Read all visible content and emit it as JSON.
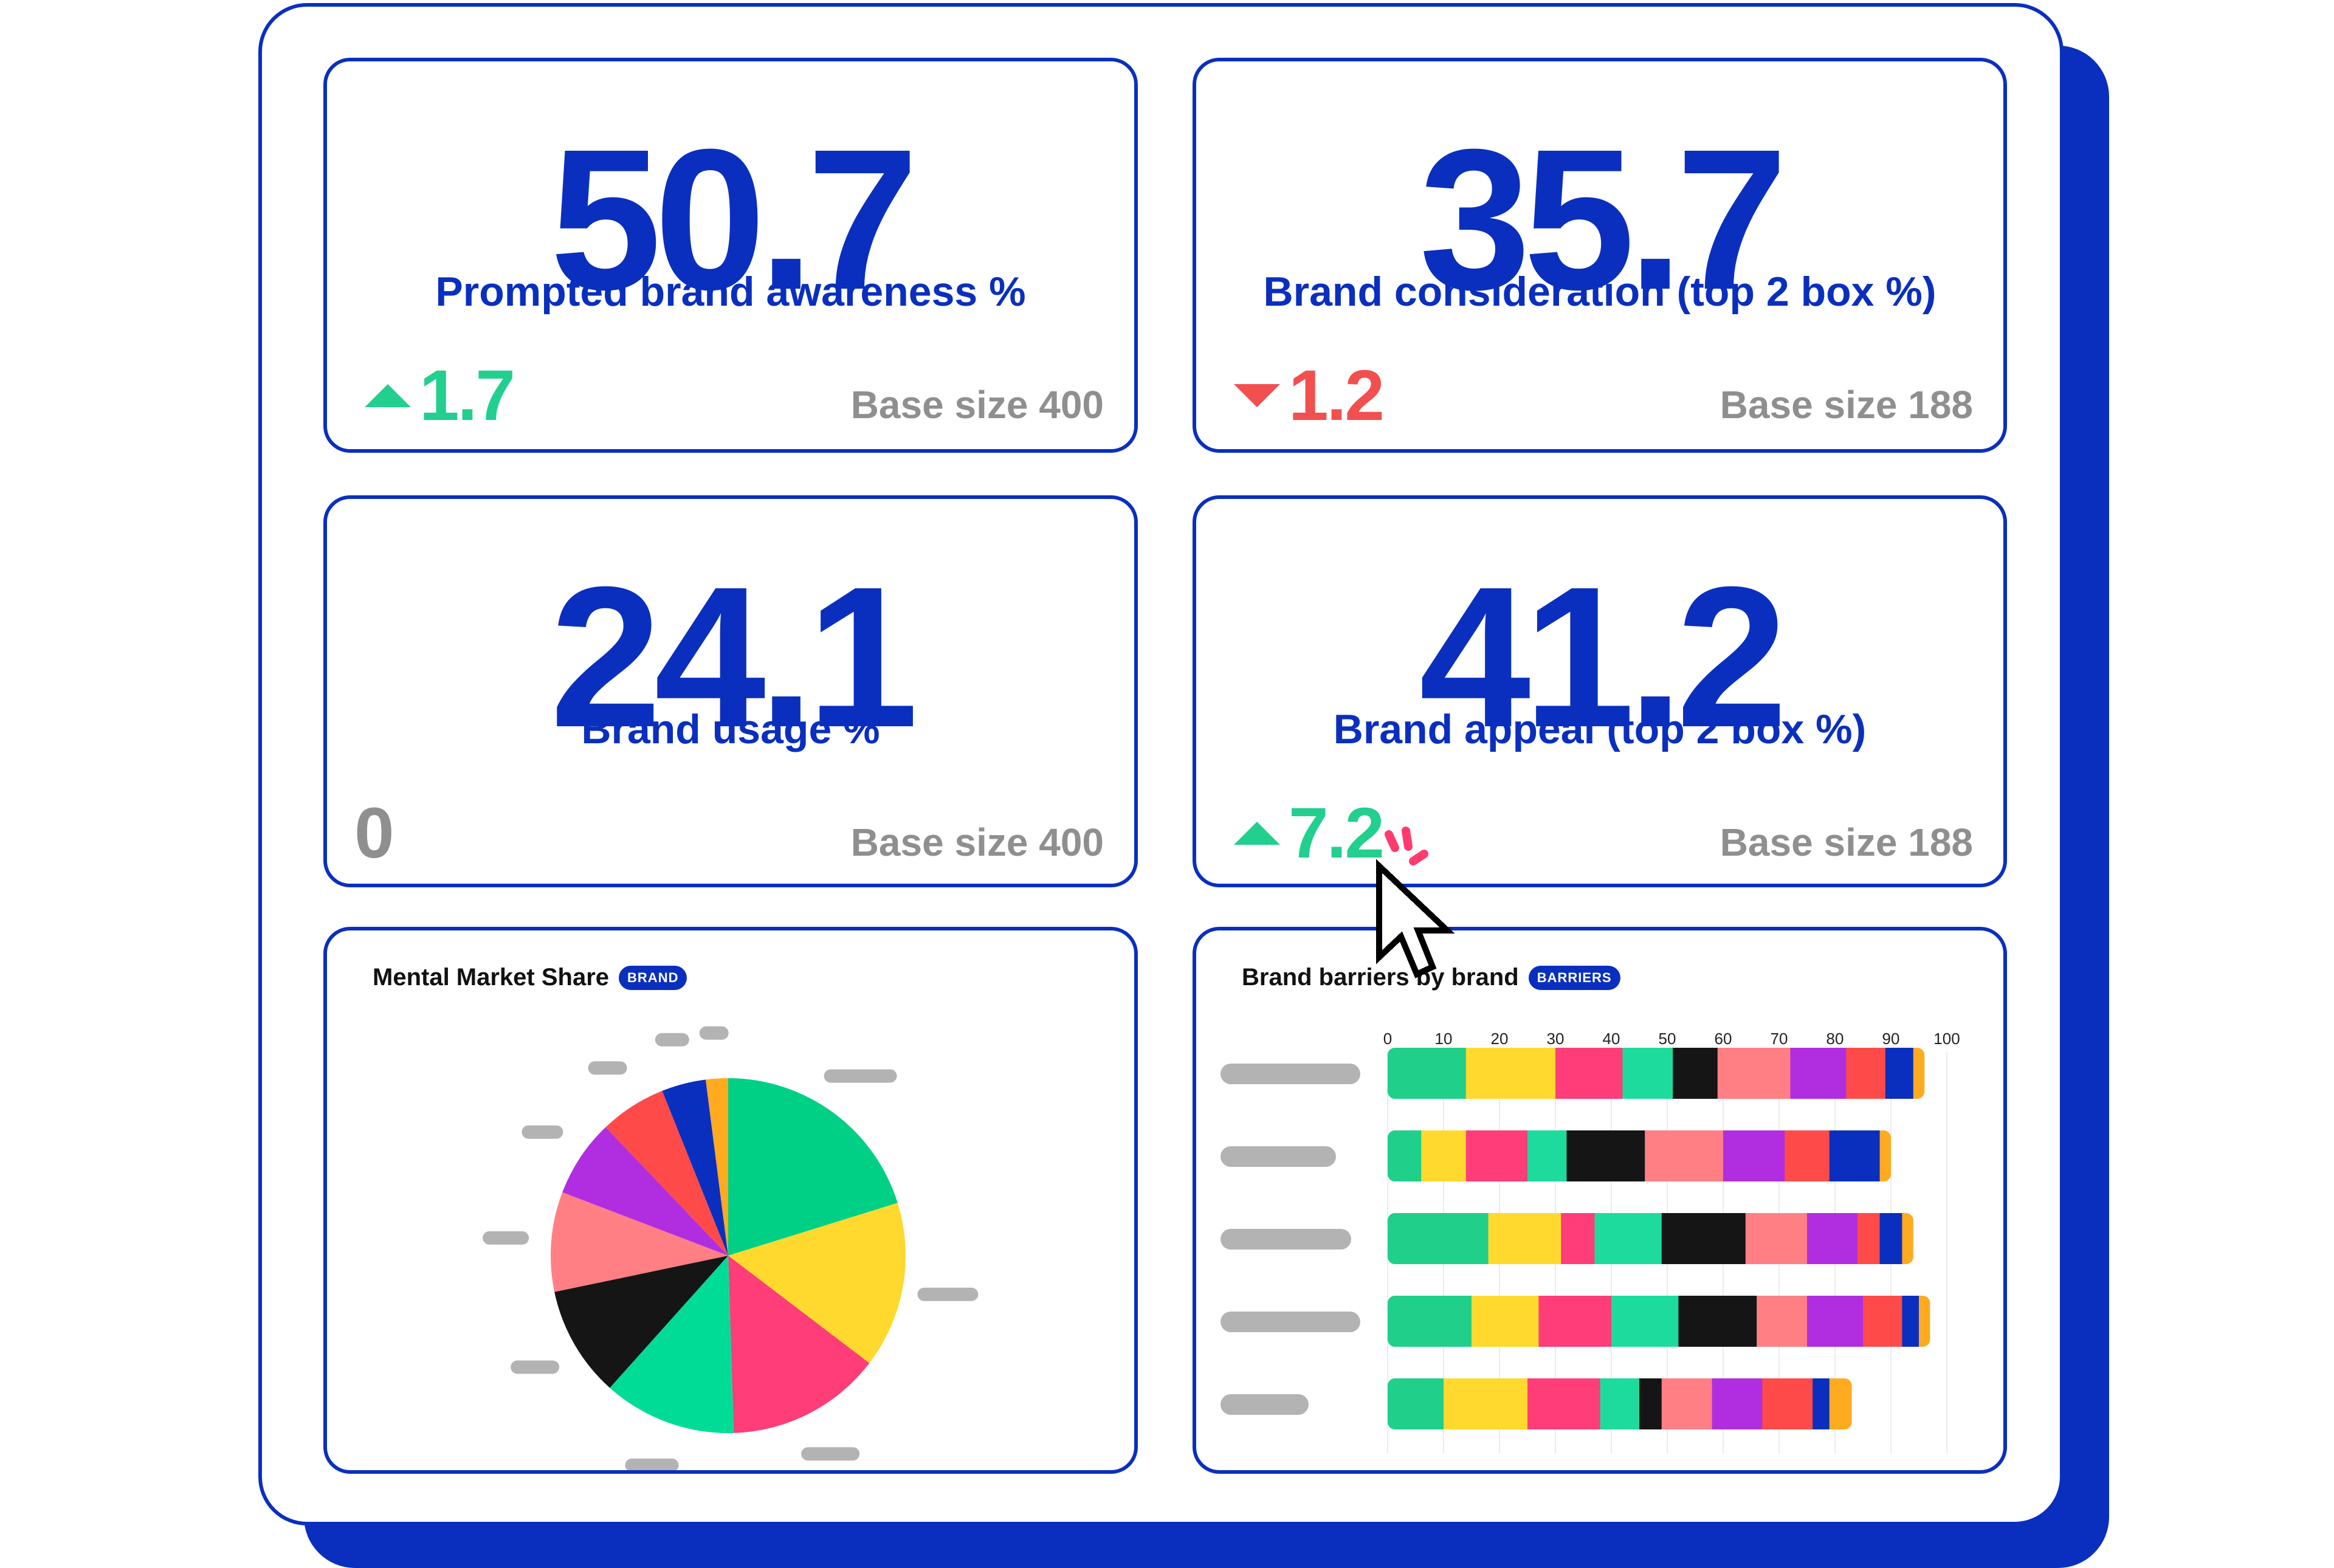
{
  "kpis": [
    {
      "value": "50.7",
      "label": "Prompted brand awareness %",
      "change": "1.7",
      "direction": "up",
      "base": "Base size 400"
    },
    {
      "value": "35.7",
      "label": "Brand consideration (top 2 box %)",
      "change": "1.2",
      "direction": "down",
      "base": "Base size 188"
    },
    {
      "value": "24.1",
      "label": "Brand usage %",
      "change": "0",
      "direction": "none",
      "base": "Base size 400"
    },
    {
      "value": "41.2",
      "label": "Brand appeal (top 2 box %)",
      "change": "7.2",
      "direction": "up",
      "base": "Base size 188"
    }
  ],
  "colors": {
    "brand_blue": "#0a2fbf",
    "up": "#22cf8f",
    "down": "#f24f4f",
    "neutral": "#8f8f8f",
    "cursor_accent": "#ff3b6e"
  },
  "pie_card": {
    "title": "Mental Market Share",
    "tag": "BRAND"
  },
  "bar_card": {
    "title": "Brand barriers by brand",
    "tag": "BARRIERS"
  },
  "chart_data": [
    {
      "type": "pie",
      "title": "Mental Market Share",
      "labels_hidden": true,
      "slices": [
        {
          "value": 20,
          "color": "#00cf86"
        },
        {
          "value": 15,
          "color": "#ffd92e"
        },
        {
          "value": 14,
          "color": "#ff3d78"
        },
        {
          "value": 12,
          "color": "#00dc96"
        },
        {
          "value": 10,
          "color": "#151515"
        },
        {
          "value": 9,
          "color": "#ff7f85"
        },
        {
          "value": 7,
          "color": "#b02ee0"
        },
        {
          "value": 6,
          "color": "#ff4a4a"
        },
        {
          "value": 4,
          "color": "#0a2fbf"
        },
        {
          "value": 2,
          "color": "#ffaa1f"
        }
      ]
    },
    {
      "type": "bar",
      "orientation": "horizontal",
      "stacked": true,
      "title": "Brand barriers by brand",
      "x_ticks": [
        "0",
        "10",
        "20",
        "30",
        "40",
        "50",
        "60",
        "70",
        "80",
        "90",
        "100"
      ],
      "xlim": [
        0,
        100
      ],
      "category_labels_hidden": true,
      "segment_colors": [
        "#1fcf8a",
        "#ffd92e",
        "#ff3d78",
        "#1ddb9c",
        "#151515",
        "#ff7f85",
        "#b02ee0",
        "#ff4a4a",
        "#0a2fbf",
        "#ffaa1f"
      ],
      "rows": [
        [
          14,
          16,
          12,
          9,
          8,
          13,
          10,
          7,
          5,
          2
        ],
        [
          6,
          8,
          11,
          7,
          14,
          14,
          11,
          8,
          9,
          2
        ],
        [
          18,
          13,
          6,
          12,
          15,
          11,
          9,
          4,
          4,
          2
        ],
        [
          15,
          12,
          13,
          12,
          14,
          9,
          10,
          7,
          3,
          2
        ],
        [
          10,
          15,
          13,
          7,
          4,
          9,
          9,
          9,
          3,
          4
        ]
      ]
    }
  ]
}
